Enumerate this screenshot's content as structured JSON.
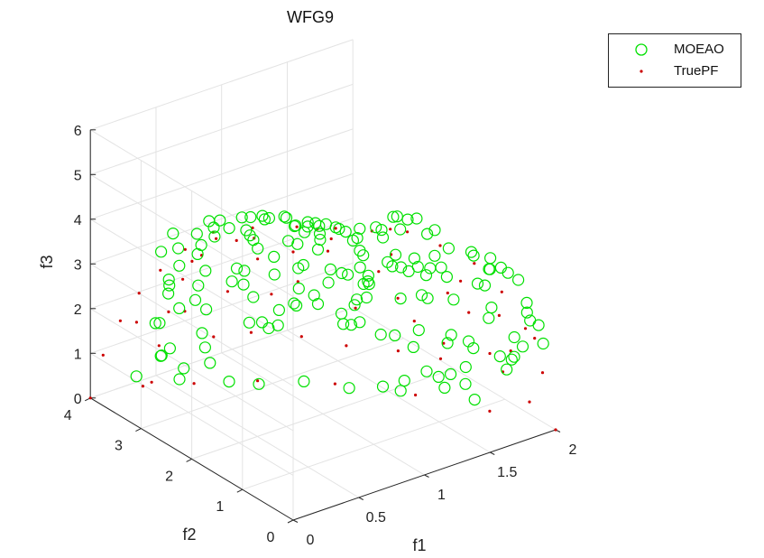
{
  "chart_data": {
    "type": "scatter",
    "title": "WFG9",
    "xlabel": "f1",
    "ylabel": "f2",
    "zlabel": "f3",
    "xlim": [
      0,
      2
    ],
    "ylim": [
      0,
      4
    ],
    "zlim": [
      0,
      6
    ],
    "xticks": [
      "0",
      "0.5",
      "1",
      "1.5",
      "2"
    ],
    "yticks": [
      "0",
      "1",
      "2",
      "3",
      "4"
    ],
    "zticks": [
      "0",
      "1",
      "2",
      "3",
      "4",
      "5",
      "6"
    ],
    "grid": true,
    "legend_position": "top-right",
    "series": [
      {
        "name": "MOEAO",
        "marker": "open-circle",
        "color": "#00e000",
        "points": [
          [
            0.37,
            3.41,
            2.68
          ],
          [
            0.42,
            3.55,
            2.22
          ],
          [
            0.45,
            3.8,
            1.36
          ],
          [
            0.39,
            3.44,
            1.1
          ],
          [
            0.45,
            3.76,
            0.66
          ],
          [
            0.8,
            2.44,
            3.02
          ],
          [
            0.26,
            1.6,
            5.13
          ],
          [
            0.64,
            2.51,
            4.01
          ],
          [
            0.49,
            2.53,
            4.31
          ],
          [
            0.38,
            2.55,
            4.42
          ],
          [
            0.56,
            3.0,
            3.73
          ],
          [
            0.52,
            3.23,
            3.22
          ],
          [
            0.52,
            3.16,
            3.47
          ],
          [
            0.81,
            3.21,
            2.62
          ],
          [
            0.85,
            3.18,
            2.24
          ],
          [
            0.89,
            3.09,
            1.98
          ],
          [
            0.67,
            3.45,
            1.68
          ],
          [
            0.91,
            3.22,
            1.3
          ],
          [
            0.96,
            3.1,
            1.34
          ],
          [
            0.98,
            3.02,
            1.24
          ],
          [
            1.02,
            2.94,
            1.32
          ],
          [
            0.99,
            2.84,
            1.76
          ],
          [
            1.06,
            2.68,
            1.9
          ],
          [
            1.12,
            2.41,
            2.06
          ],
          [
            1.26,
            2.05,
            2.14
          ],
          [
            1.25,
            1.98,
            2.32
          ],
          [
            1.27,
            1.84,
            2.44
          ],
          [
            1.24,
            1.71,
            2.86
          ],
          [
            1.16,
            1.52,
            3.26
          ],
          [
            0.96,
            1.17,
            4.26
          ],
          [
            0.99,
            1.18,
            4.12
          ],
          [
            0.85,
            1.02,
            4.7
          ],
          [
            0.79,
            0.78,
            4.98
          ],
          [
            0.7,
            0.5,
            5.47
          ],
          [
            0.52,
            0.44,
            5.69
          ],
          [
            0.44,
            0.3,
            5.9
          ],
          [
            0.45,
            0.13,
            5.91
          ],
          [
            0.36,
            0.42,
            5.93
          ],
          [
            0.3,
            0.49,
            5.93
          ],
          [
            0.21,
            0.32,
            6.01
          ],
          [
            0.25,
            0.6,
            5.93
          ],
          [
            0.25,
            0.62,
            5.9
          ],
          [
            0.3,
            0.91,
            5.84
          ],
          [
            0.25,
            1.12,
            5.74
          ],
          [
            0.26,
            1.28,
            5.67
          ],
          [
            0.2,
            1.08,
            5.79
          ],
          [
            0.35,
            1.08,
            5.7
          ],
          [
            0.56,
            1.01,
            5.39
          ],
          [
            1.58,
            0.53,
            3.96
          ],
          [
            1.65,
            0.41,
            3.67
          ],
          [
            1.73,
            0.24,
            3.62
          ],
          [
            1.68,
            0.25,
            3.78
          ],
          [
            1.73,
            0.84,
            2.97
          ],
          [
            1.65,
            1.24,
            2.93
          ],
          [
            1.51,
            1.63,
            2.93
          ],
          [
            1.49,
            1.73,
            2.97
          ],
          [
            1.47,
            1.85,
            2.93
          ],
          [
            1.64,
            1.71,
            2.21
          ],
          [
            1.45,
            2.28,
            2.32
          ],
          [
            1.32,
            2.34,
            2.56
          ],
          [
            0.89,
            0.33,
            5.66
          ],
          [
            0.92,
            0.33,
            5.64
          ],
          [
            1.0,
            0.33,
            5.49
          ],
          [
            1.03,
            0.23,
            5.55
          ],
          [
            1.23,
            0.39,
            4.98
          ],
          [
            1.09,
            0.71,
            4.92
          ],
          [
            1.63,
            0.33,
            3.99
          ],
          [
            1.82,
            0.27,
            3.35
          ],
          [
            1.65,
            0.39,
            3.68
          ],
          [
            1.7,
            0.62,
            3.11
          ],
          [
            1.9,
            0.31,
            2.73
          ],
          [
            1.99,
            0.22,
            1.79
          ],
          [
            1.91,
            0.27,
            2.35
          ],
          [
            1.99,
            0.31,
            2.14
          ],
          [
            1.96,
            0.46,
            2.35
          ],
          [
            1.85,
            0.43,
            1.49
          ],
          [
            1.83,
            0.21,
            1.89
          ],
          [
            1.77,
            0.67,
            2.51
          ],
          [
            1.78,
            0.75,
            2.21
          ],
          [
            1.84,
            0.4,
            1.96
          ],
          [
            1.87,
            0.63,
            1.05
          ],
          [
            1.8,
            0.58,
            1.45
          ],
          [
            1.82,
            0.4,
            1.48
          ],
          [
            1.74,
            0.95,
            1.44
          ],
          [
            1.72,
            1.05,
            0.97
          ],
          [
            1.64,
            1.14,
            0.83
          ],
          [
            1.55,
            1.38,
            0.82
          ],
          [
            1.61,
            1.3,
            0.69
          ],
          [
            1.73,
            1.08,
            0.56
          ],
          [
            1.8,
            1.08,
            0.14
          ],
          [
            1.66,
            1.31,
            0.39
          ],
          [
            1.5,
            1.69,
            0.45
          ],
          [
            1.48,
            1.71,
            0.23
          ],
          [
            1.41,
            1.88,
            0.28
          ],
          [
            1.3,
            2.26,
            0.1
          ],
          [
            1.09,
            2.61,
            0.22
          ],
          [
            0.89,
            2.98,
            0.11
          ],
          [
            0.74,
            3.18,
            0.18
          ],
          [
            0.54,
            3.64,
            0.12
          ],
          [
            0.3,
            3.87,
            0.27
          ],
          [
            0.58,
            3.66,
            0.31
          ],
          [
            0.73,
            3.53,
            0.37
          ],
          [
            0.37,
            3.57,
            0.86
          ],
          [
            0.65,
            3.42,
            0.87
          ],
          [
            0.6,
            3.35,
            1.29
          ],
          [
            0.31,
            3.52,
            1.69
          ],
          [
            0.43,
            3.36,
            2.01
          ],
          [
            0.46,
            2.92,
            3.12
          ],
          [
            0.16,
            3.02,
            3.78
          ],
          [
            0.33,
            3.1,
            3.24
          ],
          [
            0.26,
            2.94,
            3.81
          ],
          [
            0.12,
            2.68,
            4.46
          ],
          [
            0.19,
            2.39,
            4.58
          ],
          [
            0.24,
            2.28,
            4.89
          ],
          [
            0.18,
            1.91,
            5.22
          ],
          [
            0.22,
            1.58,
            5.47
          ],
          [
            0.29,
            1.59,
            5.4
          ],
          [
            0.66,
            1.42,
            5.03
          ],
          [
            0.71,
            1.19,
            5.09
          ],
          [
            0.84,
            1.65,
            4.43
          ],
          [
            0.87,
            1.72,
            4.22
          ],
          [
            0.72,
            1.96,
            4.18
          ],
          [
            0.57,
            2.26,
            4.15
          ],
          [
            0.63,
            2.33,
            3.85
          ],
          [
            0.84,
            2.09,
            3.9
          ],
          [
            1.0,
            2.1,
            3.61
          ],
          [
            0.97,
            2.31,
            3.15
          ],
          [
            0.8,
            2.45,
            3.41
          ],
          [
            0.76,
            2.93,
            2.81
          ],
          [
            0.49,
            3.14,
            2.61
          ],
          [
            0.35,
            3.35,
            2.61
          ],
          [
            0.56,
            3.38,
            2.05
          ],
          [
            0.7,
            3.02,
            2.57
          ],
          [
            0.97,
            2.41,
            3.01
          ],
          [
            1.08,
            2.06,
            3.11
          ],
          [
            1.12,
            1.94,
            3.07
          ],
          [
            1.19,
            1.76,
            3.25
          ],
          [
            1.41,
            1.19,
            3.43
          ],
          [
            1.31,
            1.0,
            3.85
          ],
          [
            1.24,
            1.19,
            3.87
          ],
          [
            1.12,
            1.13,
            4.42
          ],
          [
            1.11,
            1.13,
            4.6
          ],
          [
            0.97,
            0.88,
            4.97
          ],
          [
            1.23,
            0.54,
            4.79
          ],
          [
            1.37,
            0.48,
            4.37
          ],
          [
            1.5,
            0.37,
            4.23
          ],
          [
            1.36,
            0.73,
            4.04
          ],
          [
            1.46,
            0.86,
            3.59
          ],
          [
            1.48,
            1.13,
            3.37
          ],
          [
            1.33,
            1.58,
            3.35
          ],
          [
            1.52,
            1.31,
            3.05
          ],
          [
            1.69,
            1.21,
            2.4
          ],
          [
            1.6,
            1.49,
            2.33
          ],
          [
            1.51,
            1.79,
            2.21
          ],
          [
            1.34,
            2.08,
            2.51
          ],
          [
            1.18,
            2.36,
            2.51
          ],
          [
            1.09,
            2.71,
            2.23
          ],
          [
            1.08,
            2.78,
            1.86
          ],
          [
            1.16,
            2.59,
            2.09
          ],
          [
            1.21,
            2.18,
            1.91
          ],
          [
            1.33,
            2.13,
            1.63
          ],
          [
            1.29,
            2.35,
            1.48
          ],
          [
            1.3,
            2.22,
            1.54
          ],
          [
            1.39,
            1.87,
            1.47
          ],
          [
            1.47,
            1.8,
            1.42
          ],
          [
            1.53,
            1.59,
            1.24
          ],
          [
            1.62,
            1.15,
            1.54
          ],
          [
            1.66,
            1.18,
            1.66
          ],
          [
            1.7,
            0.94,
            1.64
          ],
          [
            1.56,
            1.56,
            1.61
          ]
        ]
      },
      {
        "name": "TruePF",
        "marker": "dot",
        "color": "#cc0000",
        "points": [
          [
            0.0,
            4.0,
            0.0
          ],
          [
            0.0,
            3.75,
            1.13
          ],
          [
            0.0,
            3.41,
            2.13
          ],
          [
            0.0,
            3.04,
            3.0
          ],
          [
            0.0,
            2.62,
            3.8
          ],
          [
            0.0,
            2.13,
            4.6
          ],
          [
            0.0,
            1.52,
            5.26
          ],
          [
            0.0,
            0.77,
            5.78
          ],
          [
            0.0,
            0.0,
            6.0
          ],
          [
            0.31,
            3.26,
            2.12
          ],
          [
            0.33,
            3.5,
            1.18
          ],
          [
            0.37,
            3.75,
            0.15
          ],
          [
            0.31,
            2.98,
            3.04
          ],
          [
            0.26,
            2.48,
            3.97
          ],
          [
            0.31,
            1.92,
            4.63
          ],
          [
            0.22,
            1.37,
            5.38
          ],
          [
            0.31,
            0.73,
            5.75
          ],
          [
            0.29,
            0.0,
            6.0
          ],
          [
            0.6,
            0.0,
            5.86
          ],
          [
            0.87,
            0.0,
            5.57
          ],
          [
            1.12,
            0.0,
            5.01
          ],
          [
            1.38,
            0.0,
            4.35
          ],
          [
            1.59,
            0.0,
            3.5
          ],
          [
            1.77,
            0.0,
            2.5
          ],
          [
            1.9,
            0.0,
            1.38
          ],
          [
            2.0,
            0.0,
            0.0
          ],
          [
            1.83,
            0.86,
            0.0
          ],
          [
            1.6,
            1.73,
            0.0
          ],
          [
            1.3,
            2.54,
            0.0
          ],
          [
            0.95,
            3.16,
            0.0
          ],
          [
            0.62,
            3.56,
            0.0
          ],
          [
            0.35,
            3.87,
            0.0
          ],
          [
            0.61,
            1.1,
            5.15
          ],
          [
            0.66,
            2.41,
            3.53
          ],
          [
            0.66,
            3.0,
            2.4
          ],
          [
            0.85,
            2.63,
            2.4
          ],
          [
            0.94,
            2.34,
            2.79
          ],
          [
            0.68,
            3.33,
            1.14
          ],
          [
            0.85,
            3.03,
            1.27
          ],
          [
            0.91,
            0.44,
            5.29
          ],
          [
            0.96,
            1.8,
            3.82
          ],
          [
            1.08,
            2.63,
            1.22
          ],
          [
            1.16,
            1.07,
            4.04
          ],
          [
            1.25,
            1.55,
            3.24
          ],
          [
            1.29,
            2.11,
            2.0
          ],
          [
            1.32,
            2.37,
            0.95
          ],
          [
            1.42,
            1.61,
            2.43
          ],
          [
            1.48,
            0.53,
            3.49
          ],
          [
            1.51,
            1.52,
            1.89
          ],
          [
            1.56,
            0.99,
            2.83
          ],
          [
            1.53,
            1.89,
            0.95
          ],
          [
            1.67,
            0.86,
            2.37
          ],
          [
            1.68,
            1.44,
            0.93
          ],
          [
            1.66,
            1.33,
            1.37
          ],
          [
            1.74,
            0.44,
            2.52
          ],
          [
            1.78,
            0.73,
            1.43
          ],
          [
            1.83,
            0.6,
            1.06
          ],
          [
            1.84,
            0.0,
            2.21
          ],
          [
            1.82,
            0.42,
            1.66
          ],
          [
            1.94,
            0.36,
            0.44
          ],
          [
            0.28,
            2.72,
            3.65
          ],
          [
            0.17,
            2.02,
            4.89
          ],
          [
            0.54,
            0.56,
            5.6
          ],
          [
            0.19,
            3.58,
            1.79
          ],
          [
            0.43,
            3.25,
            2.02
          ]
        ]
      }
    ]
  }
}
